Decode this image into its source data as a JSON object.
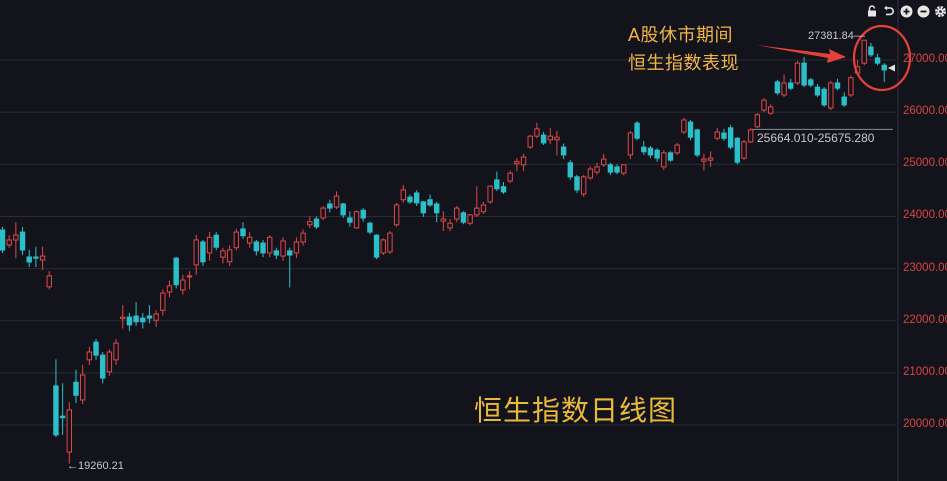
{
  "toolbar": {
    "icons": [
      "unlock-icon",
      "undo-icon",
      "zoom-in-icon",
      "zoom-out-icon",
      "gear-icon"
    ]
  },
  "annotation": {
    "line1": "A股休市期间",
    "line2": "恒生指数表现",
    "arrow_color": "#e5413b",
    "circle_color": "#e5413b"
  },
  "title": "恒生指数日线图",
  "labels": {
    "high": "27381.84",
    "low": "19260.21",
    "range": "25664.010-25675.280"
  },
  "colors": {
    "up": "#e0474a",
    "down": "#2bbfc9",
    "background": "#13141b",
    "grid": "#2a2c36",
    "axis_label": "#d64545"
  },
  "chart_data": {
    "type": "candlestick",
    "title": "恒生指数日线图",
    "ylim": [
      19000,
      27800
    ],
    "y_ticks": [
      20000,
      21000,
      22000,
      23000,
      24000,
      25000,
      26000,
      27000
    ],
    "y_tick_labels": [
      "20000.000",
      "21000.000",
      "22000.000",
      "23000.000",
      "24000.000",
      "25000.000",
      "26000.000",
      "27000.000"
    ],
    "grid": true,
    "price_level_marker": [
      25664.01,
      25675.28
    ],
    "ohlc": [
      [
        23740,
        23800,
        23300,
        23356
      ],
      [
        23452,
        23640,
        23400,
        23548
      ],
      [
        23548,
        23890,
        23200,
        23644
      ],
      [
        23700,
        23800,
        23260,
        23356
      ],
      [
        23222,
        23360,
        23030,
        23126
      ],
      [
        23222,
        23420,
        23030,
        23200
      ],
      [
        23165,
        23420,
        22970,
        23240
      ],
      [
        22650,
        22950,
        22600,
        22860
      ],
      [
        20750,
        21260,
        19770,
        19810
      ],
      [
        20170,
        20800,
        19810,
        20140
      ],
      [
        19480,
        20440,
        19260.21,
        20290
      ],
      [
        20820,
        21060,
        20420,
        20570
      ],
      [
        20480,
        21150,
        20400,
        20960
      ],
      [
        21250,
        21500,
        21150,
        21400
      ],
      [
        21590,
        21650,
        21250,
        21340
      ],
      [
        21340,
        21400,
        20800,
        20900
      ],
      [
        21020,
        21450,
        20940,
        21400
      ],
      [
        21250,
        21650,
        21150,
        21570
      ],
      [
        22040,
        22300,
        21850,
        22070
      ],
      [
        22070,
        22150,
        21800,
        21920
      ],
      [
        22090,
        22360,
        21900,
        21980
      ],
      [
        22050,
        22150,
        21850,
        21980
      ],
      [
        22090,
        22300,
        21950,
        22050
      ],
      [
        22010,
        22200,
        21880,
        22130
      ],
      [
        22200,
        22600,
        22100,
        22530
      ],
      [
        22550,
        22770,
        22450,
        22670
      ],
      [
        23200,
        23220,
        22620,
        22690
      ],
      [
        22590,
        22880,
        22500,
        22780
      ],
      [
        22840,
        22950,
        22600,
        22860
      ],
      [
        23070,
        23650,
        22880,
        23550
      ],
      [
        23510,
        23550,
        23050,
        23130
      ],
      [
        23300,
        23700,
        23150,
        23600
      ],
      [
        23640,
        23700,
        23350,
        23410
      ],
      [
        23220,
        23400,
        23100,
        23340
      ],
      [
        23130,
        23450,
        23050,
        23360
      ],
      [
        23400,
        23760,
        23350,
        23700
      ],
      [
        23760,
        23890,
        23570,
        23630
      ],
      [
        23490,
        23700,
        23400,
        23600
      ],
      [
        23510,
        23550,
        23250,
        23340
      ],
      [
        23490,
        23550,
        23220,
        23300
      ],
      [
        23300,
        23640,
        23220,
        23600
      ],
      [
        23340,
        23400,
        23180,
        23260
      ],
      [
        23240,
        23600,
        23150,
        23530
      ],
      [
        23340,
        23400,
        22640,
        23260
      ],
      [
        23300,
        23600,
        23200,
        23510
      ],
      [
        23510,
        23750,
        23440,
        23680
      ],
      [
        23840,
        24000,
        23780,
        23900
      ],
      [
        23950,
        24000,
        23760,
        23800
      ],
      [
        23970,
        24200,
        23930,
        24160
      ],
      [
        24240,
        24320,
        24080,
        24160
      ],
      [
        24180,
        24480,
        24140,
        24390
      ],
      [
        24240,
        24260,
        23970,
        24030
      ],
      [
        23970,
        24100,
        23800,
        23890
      ],
      [
        23780,
        24120,
        23760,
        24090
      ],
      [
        24120,
        24160,
        23900,
        23970
      ],
      [
        23870,
        23900,
        23660,
        23700
      ],
      [
        23640,
        23660,
        23180,
        23220
      ],
      [
        23300,
        23580,
        23260,
        23550
      ],
      [
        23320,
        23720,
        23280,
        23680
      ],
      [
        23840,
        24260,
        23800,
        24220
      ],
      [
        24320,
        24600,
        24260,
        24510
      ],
      [
        24370,
        24420,
        24240,
        24280
      ],
      [
        24450,
        24500,
        24200,
        24260
      ],
      [
        24280,
        24300,
        23990,
        24070
      ],
      [
        24320,
        24420,
        24180,
        24220
      ],
      [
        24240,
        24280,
        23890,
        24070
      ],
      [
        23910,
        24100,
        23720,
        23950
      ],
      [
        23780,
        23950,
        23720,
        23870
      ],
      [
        23950,
        24200,
        23890,
        24160
      ],
      [
        24070,
        24100,
        23850,
        23890
      ],
      [
        23870,
        24050,
        23830,
        24030
      ],
      [
        24030,
        24580,
        23990,
        24160
      ],
      [
        24090,
        24280,
        24050,
        24220
      ],
      [
        24280,
        24600,
        24240,
        24580
      ],
      [
        24700,
        24860,
        24490,
        24530
      ],
      [
        24570,
        24660,
        24430,
        24470
      ],
      [
        24680,
        24880,
        24640,
        24830
      ],
      [
        25010,
        25120,
        24870,
        25050
      ],
      [
        24990,
        25200,
        24870,
        25140
      ],
      [
        25330,
        25560,
        25300,
        25540
      ],
      [
        25540,
        25800,
        25500,
        25680
      ],
      [
        25560,
        25620,
        25370,
        25410
      ],
      [
        25470,
        25700,
        25390,
        25540
      ],
      [
        25470,
        25640,
        25170,
        25520
      ],
      [
        25330,
        25400,
        25100,
        25180
      ],
      [
        25030,
        25080,
        24700,
        24760
      ],
      [
        24760,
        24800,
        24450,
        24510
      ],
      [
        24430,
        24800,
        24380,
        24760
      ],
      [
        24740,
        24960,
        24700,
        24910
      ],
      [
        24850,
        25030,
        24800,
        24950
      ],
      [
        24990,
        25200,
        24950,
        25100
      ],
      [
        24990,
        25030,
        24790,
        24850
      ],
      [
        24950,
        25000,
        24810,
        24850
      ],
      [
        24830,
        25000,
        24790,
        24990
      ],
      [
        25180,
        25640,
        25100,
        25600
      ],
      [
        25790,
        25830,
        25460,
        25500
      ],
      [
        25330,
        25450,
        25180,
        25240
      ],
      [
        25310,
        25350,
        25120,
        25180
      ],
      [
        25270,
        25310,
        25050,
        25120
      ],
      [
        24950,
        25270,
        24890,
        25220
      ],
      [
        25220,
        25250,
        25050,
        25080
      ],
      [
        25220,
        25410,
        25180,
        25370
      ],
      [
        25620,
        25890,
        25580,
        25850
      ],
      [
        25810,
        25850,
        25460,
        25520
      ],
      [
        25660,
        25680,
        25140,
        25180
      ],
      [
        25060,
        25200,
        24880,
        25100
      ],
      [
        25080,
        25250,
        24950,
        25120
      ],
      [
        25500,
        25700,
        25460,
        25620
      ],
      [
        25600,
        25680,
        25450,
        25500
      ],
      [
        25700,
        25760,
        25290,
        25330
      ],
      [
        25500,
        25520,
        25000,
        25040
      ],
      [
        25120,
        25470,
        25080,
        25430
      ],
      [
        25430,
        25700,
        25410,
        25660
      ],
      [
        25720,
        25980,
        25700,
        25950
      ],
      [
        26040,
        26270,
        26000,
        26230
      ],
      [
        25980,
        26150,
        25950,
        26100
      ],
      [
        26580,
        26620,
        26330,
        26370
      ],
      [
        26330,
        26720,
        26290,
        26560
      ],
      [
        26560,
        26640,
        26420,
        26460
      ],
      [
        26560,
        26980,
        26520,
        26940
      ],
      [
        26940,
        27060,
        26480,
        26520
      ],
      [
        26620,
        26660,
        26480,
        26520
      ],
      [
        26480,
        26540,
        26290,
        26330
      ],
      [
        26440,
        26480,
        26100,
        26140
      ],
      [
        26080,
        26600,
        26040,
        26560
      ],
      [
        26560,
        26640,
        26420,
        26460
      ],
      [
        26290,
        26380,
        26100,
        26140
      ],
      [
        26330,
        26700,
        26290,
        26660
      ],
      [
        26750,
        27000,
        26700,
        26870
      ],
      [
        26940,
        27381.84,
        26900,
        27380
      ],
      [
        27250,
        27330,
        27060,
        27100
      ],
      [
        27040,
        27120,
        26900,
        26940
      ],
      [
        26900,
        26940,
        26580,
        26810
      ]
    ]
  }
}
